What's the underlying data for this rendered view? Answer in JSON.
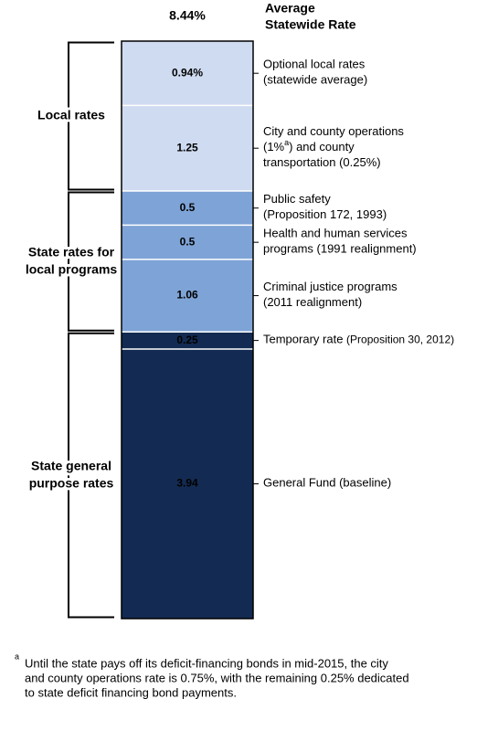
{
  "chart_data": {
    "type": "stacked-bar",
    "total_label": "8.44%",
    "header_lines": [
      "Average",
      "Statewide Rate"
    ],
    "ylim": [
      0,
      8.44
    ],
    "groups": [
      {
        "label_lines": [
          "State general",
          "purpose rates"
        ],
        "series": [
          {
            "value": 3.94,
            "color": "#132b52",
            "label_lines": [
              [
                "General Fund (baseline)"
              ]
            ]
          },
          {
            "value": 0.25,
            "color": "#132b52",
            "label_lines": [
              [
                "Temporary rate ",
                {
                  "small": "(Proposition 30, 2012)"
                }
              ]
            ]
          }
        ]
      },
      {
        "label_lines": [
          "State rates for",
          "local programs"
        ],
        "series": [
          {
            "value": 1.06,
            "color": "#7ea3d6",
            "label_lines": [
              [
                "Criminal justice programs"
              ],
              [
                "(2011 realignment)"
              ]
            ]
          },
          {
            "value": 0.5,
            "color": "#7ea3d6",
            "label_lines": [
              [
                "Health and human services"
              ],
              [
                "programs (1991 realignment)"
              ]
            ]
          },
          {
            "value": 0.5,
            "color": "#7ea3d6",
            "label_lines": [
              [
                "Public safety"
              ],
              [
                "(Proposition 172, 1993)"
              ]
            ]
          }
        ]
      },
      {
        "label_lines": [
          "Local rates"
        ],
        "series": [
          {
            "value": 1.25,
            "color": "#cfdbf0",
            "label_lines": [
              [
                "City and county operations"
              ],
              [
                "(1%",
                {
                  "sup": "a"
                },
                ") and county"
              ],
              [
                "transportation (0.25%)"
              ]
            ]
          },
          {
            "value": 0.94,
            "value_label": "0.94%",
            "color": "#cfdbf0",
            "label_lines": [
              [
                "Optional local rates"
              ],
              [
                "(statewide average)"
              ]
            ]
          }
        ]
      }
    ],
    "footnote": {
      "marker": "a",
      "lines": [
        "Until the state pays off its deficit-financing bonds in mid-2015, the city",
        "and county operations rate is 0.75%, with the remaining 0.25% dedicated",
        "to state deficit financing bond payments."
      ]
    }
  }
}
